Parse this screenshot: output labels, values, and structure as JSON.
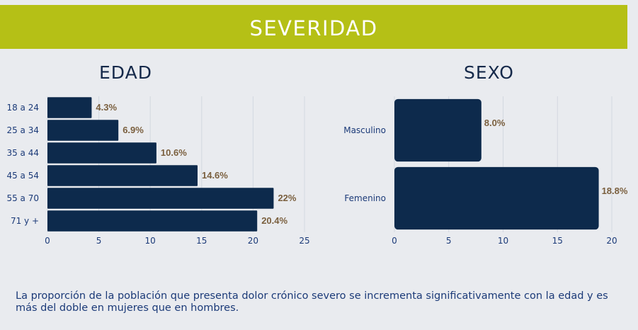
{
  "header": {
    "title": "SEVERIDAD",
    "color": "#b5c016"
  },
  "chart_data": [
    {
      "type": "bar",
      "orientation": "horizontal",
      "title": "EDAD",
      "categories": [
        "18 a 24",
        "25 a 34",
        "35 a 44",
        "45 a 54",
        "55 a 70",
        "71 y +"
      ],
      "values": [
        4.3,
        6.9,
        10.6,
        14.6,
        22,
        20.4
      ],
      "value_labels": [
        "4.3%",
        "6.9%",
        "10.6%",
        "14.6%",
        "22%",
        "20.4%"
      ],
      "xlim": [
        0,
        25
      ],
      "x_ticks": [
        "0",
        "5",
        "10",
        "15",
        "20",
        "25"
      ],
      "grid": true,
      "bar_color": "#0d2a4c",
      "label_color": "#7a5f3e"
    },
    {
      "type": "bar",
      "orientation": "horizontal",
      "title": "SEXO",
      "categories": [
        "Masculino",
        "Femenino"
      ],
      "values": [
        8.0,
        18.8
      ],
      "value_labels": [
        "8.0%",
        "18.8%"
      ],
      "xlim": [
        0,
        20
      ],
      "x_ticks": [
        "0",
        "5",
        "10",
        "15",
        "20"
      ],
      "grid": true,
      "bar_color": "#0d2a4c",
      "label_color": "#7a5f3e"
    }
  ],
  "footnote": "La proporción de la población que presenta dolor crónico severo se incrementa significativamente con la edad y es más del doble en mujeres que en hombres."
}
